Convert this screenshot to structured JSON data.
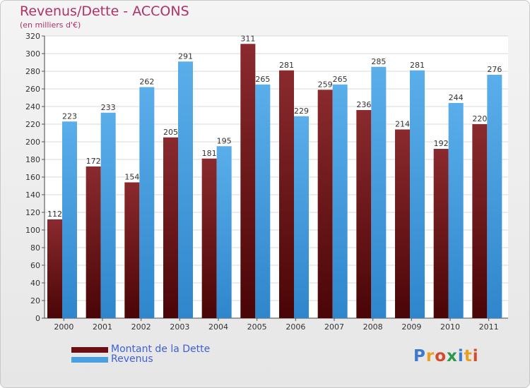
{
  "chart_data": {
    "type": "bar",
    "title": "Revenus/Dette - ACCONS",
    "subtitle": "(en milliers d'€)",
    "categories": [
      "2000",
      "2001",
      "2002",
      "2003",
      "2004",
      "2005",
      "2006",
      "2007",
      "2008",
      "2009",
      "2010",
      "2011"
    ],
    "series": [
      {
        "name": "Montant de la Dette",
        "values": [
          112,
          172,
          154,
          205,
          181,
          311,
          281,
          259,
          236,
          214,
          192,
          220
        ],
        "color": "#7a1a1e"
      },
      {
        "name": "Revenus",
        "values": [
          223,
          233,
          262,
          291,
          195,
          265,
          229,
          265,
          285,
          281,
          244,
          276
        ],
        "color": "#4a9fe0"
      }
    ],
    "ylim": [
      0,
      320
    ],
    "yticks": [
      0,
      20,
      40,
      60,
      80,
      100,
      120,
      140,
      160,
      180,
      200,
      220,
      240,
      260,
      280,
      300,
      320
    ],
    "grid": true,
    "legend_position": "bottom-left"
  },
  "branding": {
    "logo_letters": [
      "P",
      "r",
      "o",
      "x",
      "i",
      "t",
      "i"
    ],
    "logo_colors": [
      "#3a7ad0",
      "#e8a020",
      "#d64a2a",
      "#2a9a4a",
      "#3a7ad0",
      "#e8a020",
      "#d64a2a"
    ]
  },
  "colors": {
    "title": "#b0306a",
    "legend_text": "#3f5fd6"
  }
}
